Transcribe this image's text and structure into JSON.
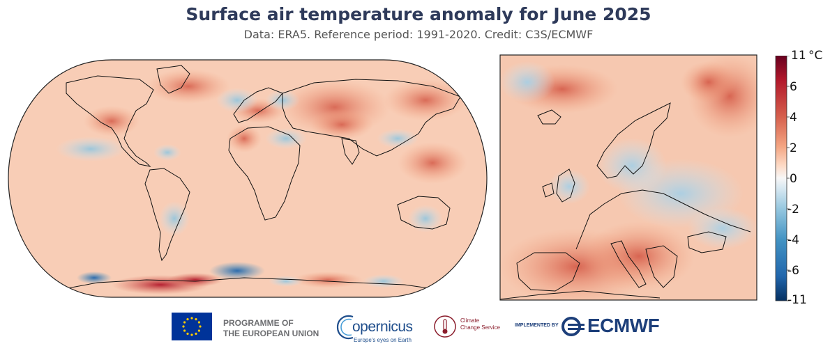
{
  "header": {
    "title": "Surface air temperature anomaly for June 2025",
    "subtitle": "Data: ERA5.  Reference period: 1991-2020.  Credit: C3S/ECMWF"
  },
  "colorbar": {
    "unit": "°C",
    "ticks": [
      "11",
      "6",
      "4",
      "2",
      "0",
      "-2",
      "-4",
      "-6",
      "-11"
    ],
    "colors": [
      "#67001f",
      "#b2182b",
      "#d6604d",
      "#f4a582",
      "#fddbc7",
      "#f7f7f7",
      "#d1e5f0",
      "#92c5de",
      "#4393c3",
      "#2166ac",
      "#053061"
    ]
  },
  "maps": {
    "world": {
      "projection": "Robinson",
      "dominant_color": "#f6c1a6"
    },
    "europe": {
      "region": "Europe",
      "dominant_color": "#f3b497"
    }
  },
  "logos": {
    "eu": {
      "line1": "PROGRAMME OF",
      "line2": "THE EUROPEAN UNION"
    },
    "copernicus": {
      "name": "opernicus",
      "tagline": "Europe's eyes on Earth"
    },
    "c3s": {
      "line1": "Climate",
      "line2": "Change Service"
    },
    "implemented_by": "IMPLEMENTED BY",
    "ecmwf": "ECMWF"
  }
}
